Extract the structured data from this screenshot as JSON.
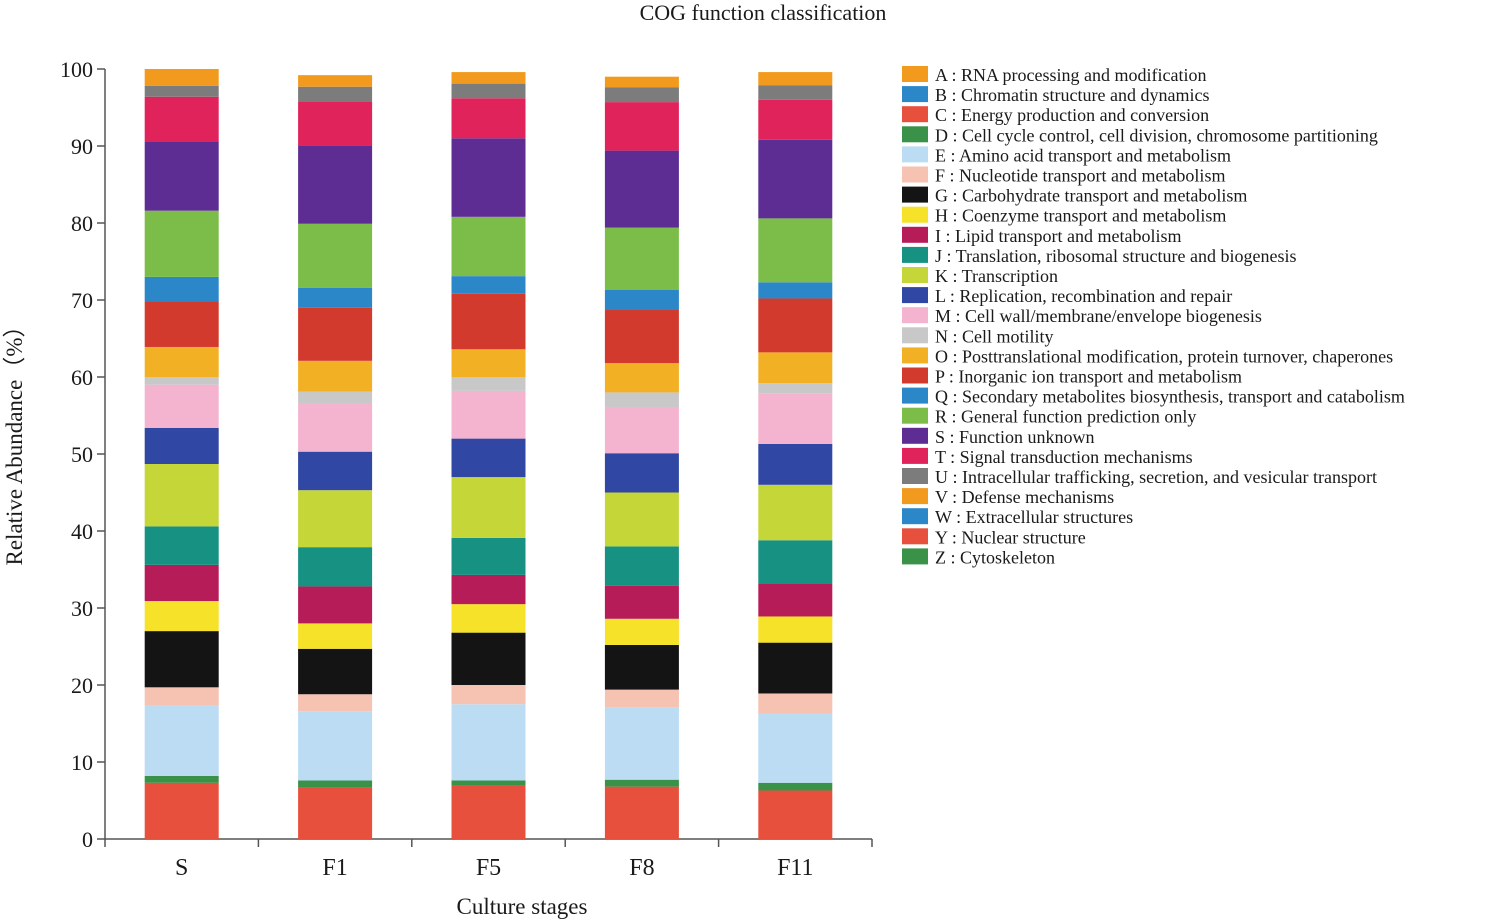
{
  "chart_data": {
    "type": "bar",
    "stacked": true,
    "title": "COG function classification",
    "xlabel": "Culture stages",
    "ylabel": "Relative Abundance（%）",
    "ylim": [
      0,
      100
    ],
    "yticks": [
      0,
      10,
      20,
      30,
      40,
      50,
      60,
      70,
      80,
      90,
      100
    ],
    "categories": [
      "S",
      "F1",
      "F5",
      "F8",
      "F11"
    ],
    "legend_position": "right",
    "series": [
      {
        "code": "Y",
        "name": "Y : Nuclear structure",
        "color": "#e8503e",
        "values": [
          7.3,
          6.7,
          6.9,
          6.8,
          6.3
        ]
      },
      {
        "code": "Z",
        "name": "Z : Cytoskeleton",
        "color": "#3a9148",
        "values": [
          0.9,
          0.9,
          0.7,
          0.9,
          1.0
        ]
      },
      {
        "code": "E",
        "name": "E : Amino acid transport and metabolism",
        "color": "#bcdcf4",
        "values": [
          9.2,
          9.0,
          9.9,
          9.4,
          9.0
        ]
      },
      {
        "code": "F",
        "name": "F : Nucleotide transport and metabolism",
        "color": "#f6c2b2",
        "values": [
          2.3,
          2.2,
          2.5,
          2.3,
          2.6
        ]
      },
      {
        "code": "G",
        "name": "G : Carbohydrate transport and metabolism",
        "color": "#141414",
        "values": [
          7.3,
          5.9,
          6.8,
          5.8,
          6.6
        ]
      },
      {
        "code": "H",
        "name": "H : Coenzyme transport and metabolism",
        "color": "#f7e22a",
        "values": [
          3.9,
          3.3,
          3.7,
          3.4,
          3.4
        ]
      },
      {
        "code": "I",
        "name": "I : Lipid transport and metabolism",
        "color": "#b61c58",
        "values": [
          4.7,
          4.8,
          3.8,
          4.3,
          4.3
        ]
      },
      {
        "code": "J",
        "name": "J : Translation, ribosomal structure and biogenesis",
        "color": "#179182",
        "values": [
          5.0,
          5.1,
          4.8,
          5.1,
          5.6
        ]
      },
      {
        "code": "K",
        "name": "K : Transcription",
        "color": "#c5d638",
        "values": [
          8.1,
          7.4,
          7.9,
          7.0,
          7.2
        ]
      },
      {
        "code": "L",
        "name": "L : Replication, recombination and repair",
        "color": "#3047a3",
        "values": [
          4.7,
          5.0,
          5.0,
          5.1,
          5.3
        ]
      },
      {
        "code": "M",
        "name": "M : Cell wall/membrane/envelope biogenesis",
        "color": "#f4b4d0",
        "values": [
          5.6,
          6.2,
          6.2,
          6.0,
          6.6
        ]
      },
      {
        "code": "N",
        "name": "N : Cell motility",
        "color": "#c8c8c8",
        "values": [
          1.0,
          1.6,
          1.8,
          1.9,
          1.3
        ]
      },
      {
        "code": "O",
        "name": "O : Posttranslational modification, protein turnover, chaperones",
        "color": "#f2b124",
        "values": [
          3.9,
          4.0,
          3.6,
          3.8,
          4.0
        ]
      },
      {
        "code": "P",
        "name": "P : Inorganic ion transport and metabolism",
        "color": "#d23a2e",
        "values": [
          5.9,
          6.9,
          7.2,
          6.9,
          7.0
        ]
      },
      {
        "code": "Q",
        "name": "Q : Secondary metabolites biosynthesis, transport and catabolism",
        "color": "#2c87c8",
        "values": [
          3.2,
          2.6,
          2.3,
          2.6,
          2.1
        ]
      },
      {
        "code": "R",
        "name": "R : General function prediction only",
        "color": "#7cbd4a",
        "values": [
          8.6,
          8.3,
          7.7,
          8.1,
          8.3
        ]
      },
      {
        "code": "S",
        "name": "S : Function unknown",
        "color": "#5d2d94",
        "values": [
          9.0,
          10.2,
          10.2,
          10.0,
          10.2
        ]
      },
      {
        "code": "T",
        "name": "T : Signal transduction mechanisms",
        "color": "#e0235a",
        "values": [
          5.8,
          5.7,
          5.2,
          6.3,
          5.2
        ]
      },
      {
        "code": "U",
        "name": "U : Intracellular trafficking, secretion, and vesicular transport",
        "color": "#7c7c7c",
        "values": [
          1.4,
          1.9,
          1.9,
          1.9,
          1.9
        ]
      },
      {
        "code": "V",
        "name": "V : Defense mechanisms",
        "color": "#f29a1d",
        "values": [
          2.2,
          1.5,
          1.5,
          1.4,
          1.7
        ]
      },
      {
        "code": "A",
        "name": "A : RNA processing and modification",
        "color": "#f29a1d",
        "values": [
          0,
          0,
          0,
          0,
          0
        ]
      },
      {
        "code": "B",
        "name": "B : Chromatin structure and dynamics",
        "color": "#2c87c8",
        "values": [
          0,
          0,
          0,
          0,
          0
        ]
      },
      {
        "code": "C",
        "name": "C : Energy production and conversion",
        "color": "#e8503e",
        "values": [
          0,
          0,
          0,
          0,
          0
        ]
      },
      {
        "code": "D",
        "name": "D : Cell cycle control, cell division, chromosome partitioning",
        "color": "#3a9148",
        "values": [
          0,
          0,
          0,
          0,
          0
        ]
      },
      {
        "code": "W",
        "name": "W : Extracellular structures",
        "color": "#2c87c8",
        "values": [
          0,
          0,
          0,
          0,
          0
        ]
      }
    ],
    "legend": [
      {
        "label": "A : RNA processing and modification",
        "color": "#f29a1d"
      },
      {
        "label": "B : Chromatin structure and dynamics",
        "color": "#2c87c8"
      },
      {
        "label": "C : Energy production and conversion",
        "color": "#e8503e"
      },
      {
        "label": "D : Cell cycle control, cell division, chromosome partitioning",
        "color": "#3a9148"
      },
      {
        "label": "E : Amino acid transport and metabolism",
        "color": "#bcdcf4"
      },
      {
        "label": "F : Nucleotide transport and metabolism",
        "color": "#f6c2b2"
      },
      {
        "label": "G : Carbohydrate transport and metabolism",
        "color": "#141414"
      },
      {
        "label": "H : Coenzyme transport and metabolism",
        "color": "#f7e22a"
      },
      {
        "label": "I : Lipid transport and metabolism",
        "color": "#b61c58"
      },
      {
        "label": "J : Translation, ribosomal structure and biogenesis",
        "color": "#179182"
      },
      {
        "label": "K : Transcription",
        "color": "#c5d638"
      },
      {
        "label": "L : Replication, recombination and repair",
        "color": "#3047a3"
      },
      {
        "label": "M : Cell wall/membrane/envelope biogenesis",
        "color": "#f4b4d0"
      },
      {
        "label": "N : Cell motility",
        "color": "#c8c8c8"
      },
      {
        "label": "O : Posttranslational modification, protein turnover, chaperones",
        "color": "#f2b124"
      },
      {
        "label": "P : Inorganic ion transport and metabolism",
        "color": "#d23a2e"
      },
      {
        "label": "Q : Secondary metabolites biosynthesis, transport and catabolism",
        "color": "#2c87c8"
      },
      {
        "label": "R : General function prediction only",
        "color": "#7cbd4a"
      },
      {
        "label": "S : Function unknown",
        "color": "#5d2d94"
      },
      {
        "label": "T : Signal transduction mechanisms",
        "color": "#e0235a"
      },
      {
        "label": "U : Intracellular trafficking, secretion, and vesicular transport",
        "color": "#7c7c7c"
      },
      {
        "label": "V : Defense mechanisms",
        "color": "#f29a1d"
      },
      {
        "label": "W : Extracellular structures",
        "color": "#2c87c8"
      },
      {
        "label": "Y : Nuclear structure",
        "color": "#e8503e"
      },
      {
        "label": "Z : Cytoskeleton",
        "color": "#3a9148"
      }
    ]
  }
}
